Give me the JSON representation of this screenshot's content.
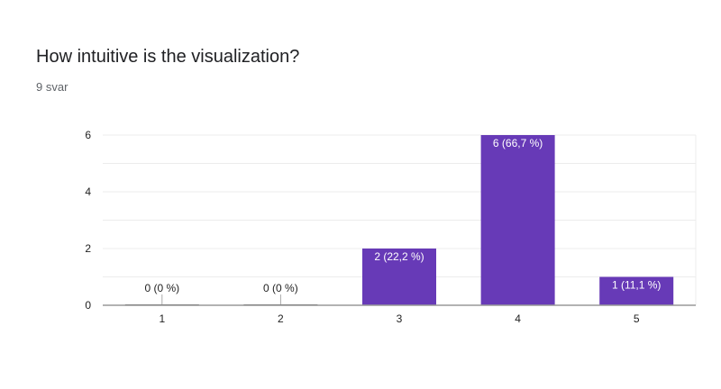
{
  "question": {
    "title": "How intuitive is the visualization?",
    "response_count": "9 svar"
  },
  "colors": {
    "bar": "#673ab7",
    "grid": "#ececec",
    "axis": "#999999"
  },
  "chart_data": {
    "type": "bar",
    "categories": [
      "1",
      "2",
      "3",
      "4",
      "5"
    ],
    "values": [
      0,
      0,
      2,
      6,
      1
    ],
    "data_labels": [
      "0 (0 %)",
      "0 (0 %)",
      "2 (22,2 %)",
      "6 (66,7 %)",
      "1 (11,1 %)"
    ],
    "ylim": [
      0,
      6
    ],
    "yticks": [
      "0",
      "2",
      "4",
      "6"
    ],
    "grid": true,
    "xlabel": "",
    "ylabel": ""
  }
}
